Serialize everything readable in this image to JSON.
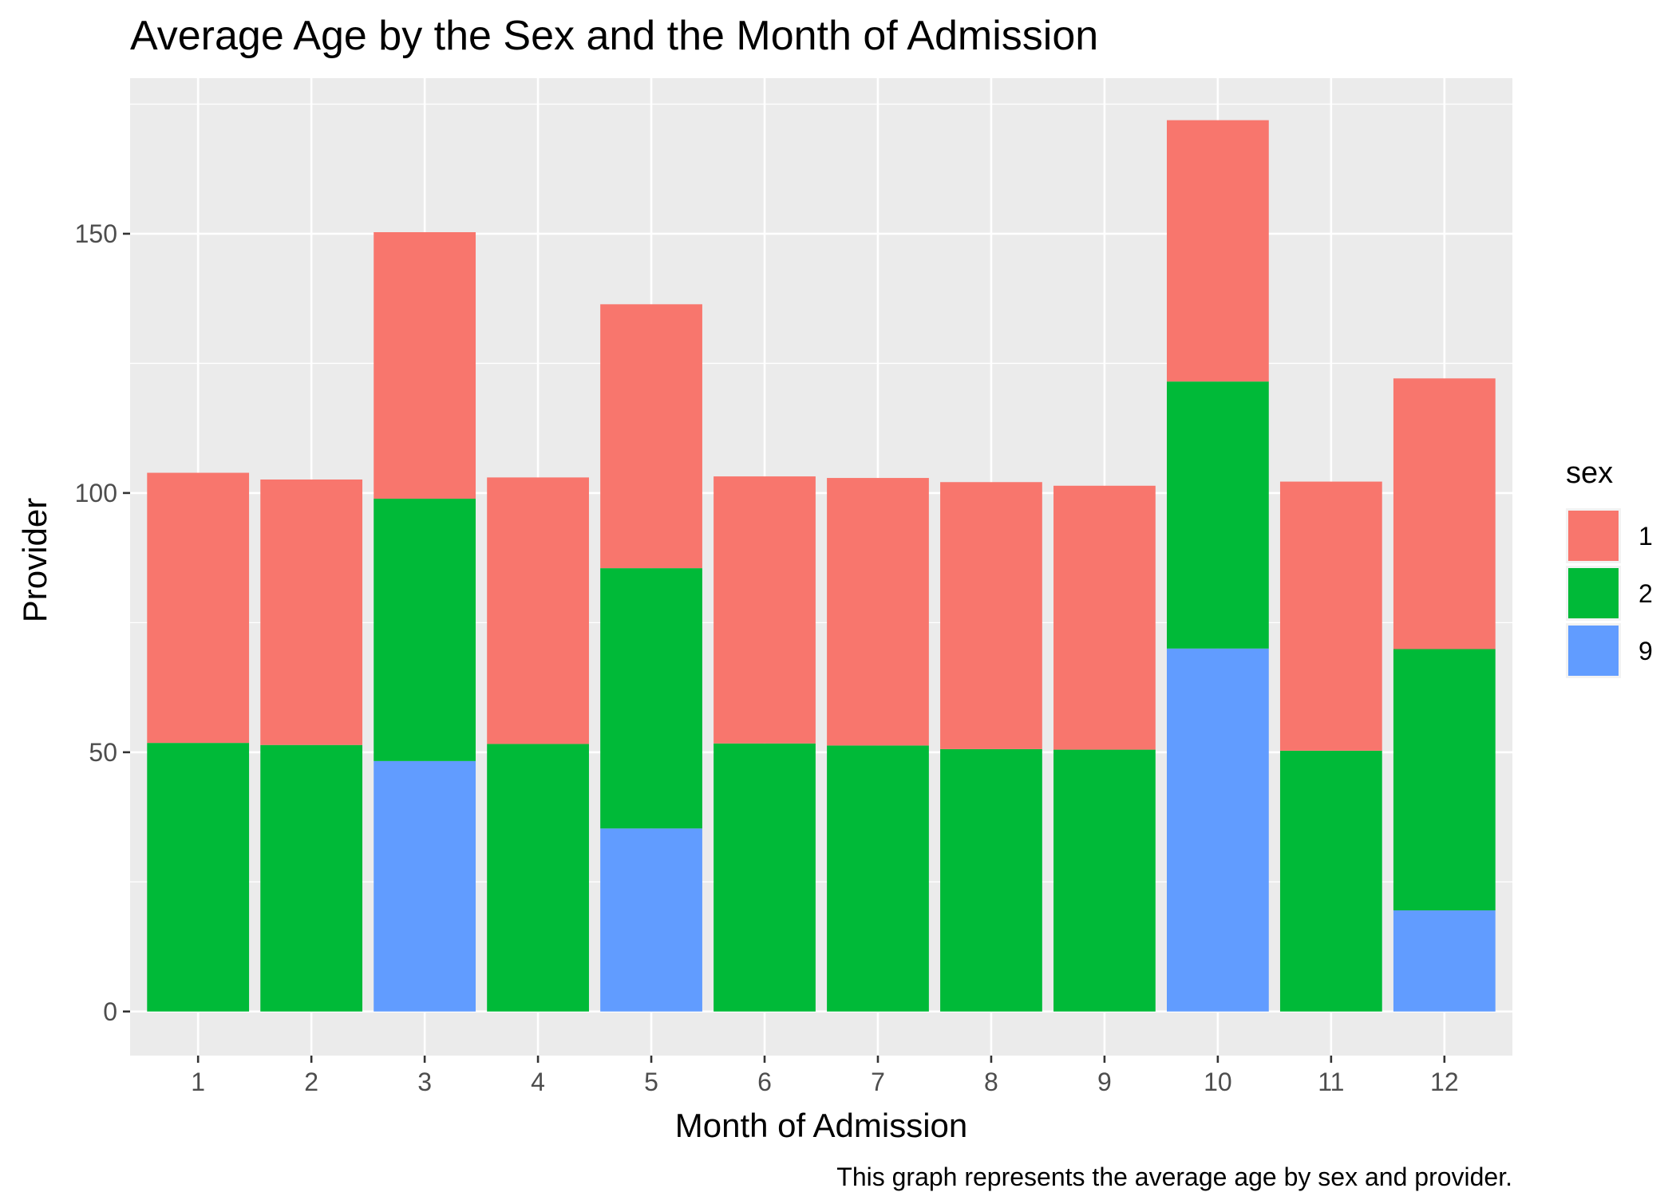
{
  "chart_data": {
    "type": "bar",
    "stacked": true,
    "title": "Average Age by the Sex and the Month of Admission",
    "xlabel": "Month of Admission",
    "ylabel": "Provider",
    "caption": "This graph represents the average age by sex and provider.",
    "categories": [
      "1",
      "2",
      "3",
      "4",
      "5",
      "6",
      "7",
      "8",
      "9",
      "10",
      "11",
      "12"
    ],
    "yticks": [
      0,
      50,
      100,
      150
    ],
    "ylim": [
      -8.5,
      180
    ],
    "grid": true,
    "legend": {
      "title": "sex",
      "position": "right"
    },
    "series": [
      {
        "name": "9",
        "color": "#619CFF",
        "values": [
          0,
          0,
          48.3,
          0,
          35.3,
          0,
          0,
          0,
          0,
          70.0,
          0,
          19.5
        ]
      },
      {
        "name": "2",
        "color": "#00BA38",
        "values": [
          51.8,
          51.4,
          50.6,
          51.6,
          50.2,
          51.7,
          51.3,
          50.6,
          50.5,
          51.5,
          50.3,
          50.4
        ]
      },
      {
        "name": "1",
        "color": "#F8766D",
        "values": [
          52.1,
          51.2,
          51.4,
          51.4,
          50.9,
          51.5,
          51.6,
          51.5,
          50.9,
          50.4,
          51.9,
          52.2
        ]
      }
    ],
    "legend_order": [
      "1",
      "2",
      "9"
    ],
    "panel_background": "#EBEBEB",
    "gridline_color": "#FFFFFF"
  }
}
